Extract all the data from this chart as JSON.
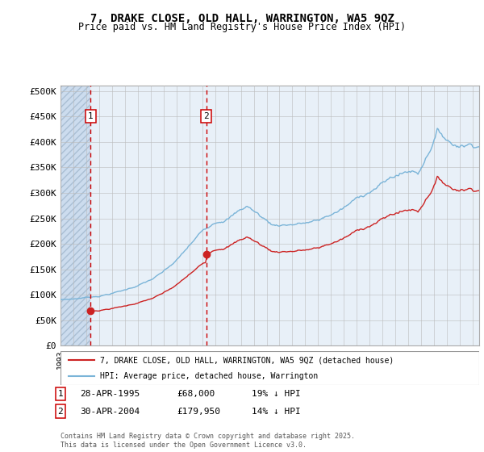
{
  "title": "7, DRAKE CLOSE, OLD HALL, WARRINGTON, WA5 9QZ",
  "subtitle": "Price paid vs. HM Land Registry's House Price Index (HPI)",
  "ylabel_ticks": [
    "£0",
    "£50K",
    "£100K",
    "£150K",
    "£200K",
    "£250K",
    "£300K",
    "£350K",
    "£400K",
    "£450K",
    "£500K"
  ],
  "ytick_values": [
    0,
    50000,
    100000,
    150000,
    200000,
    250000,
    300000,
    350000,
    400000,
    450000,
    500000
  ],
  "ylim": [
    0,
    510000
  ],
  "xlim_start": 1993.0,
  "xlim_end": 2025.5,
  "sale1_date": 1995.32,
  "sale1_price": 68000,
  "sale1_label": "1",
  "sale2_date": 2004.33,
  "sale2_price": 179950,
  "sale2_label": "2",
  "legend_property": "7, DRAKE CLOSE, OLD HALL, WARRINGTON, WA5 9QZ (detached house)",
  "legend_hpi": "HPI: Average price, detached house, Warrington",
  "hpi_color": "#7ab4d8",
  "property_color": "#cc2222",
  "footnote": "Contains HM Land Registry data © Crown copyright and database right 2025.\nThis data is licensed under the Open Government Licence v3.0.",
  "hatch_color": "#ccdcee",
  "plot_bg": "#e8f0f8",
  "grid_color": "#bbbbbb",
  "vline_color": "#cc0000",
  "ann1_date": "28-APR-1995",
  "ann1_price": "£68,000",
  "ann1_hpi": "19% ↓ HPI",
  "ann2_date": "30-APR-2004",
  "ann2_price": "£179,950",
  "ann2_hpi": "14% ↓ HPI"
}
